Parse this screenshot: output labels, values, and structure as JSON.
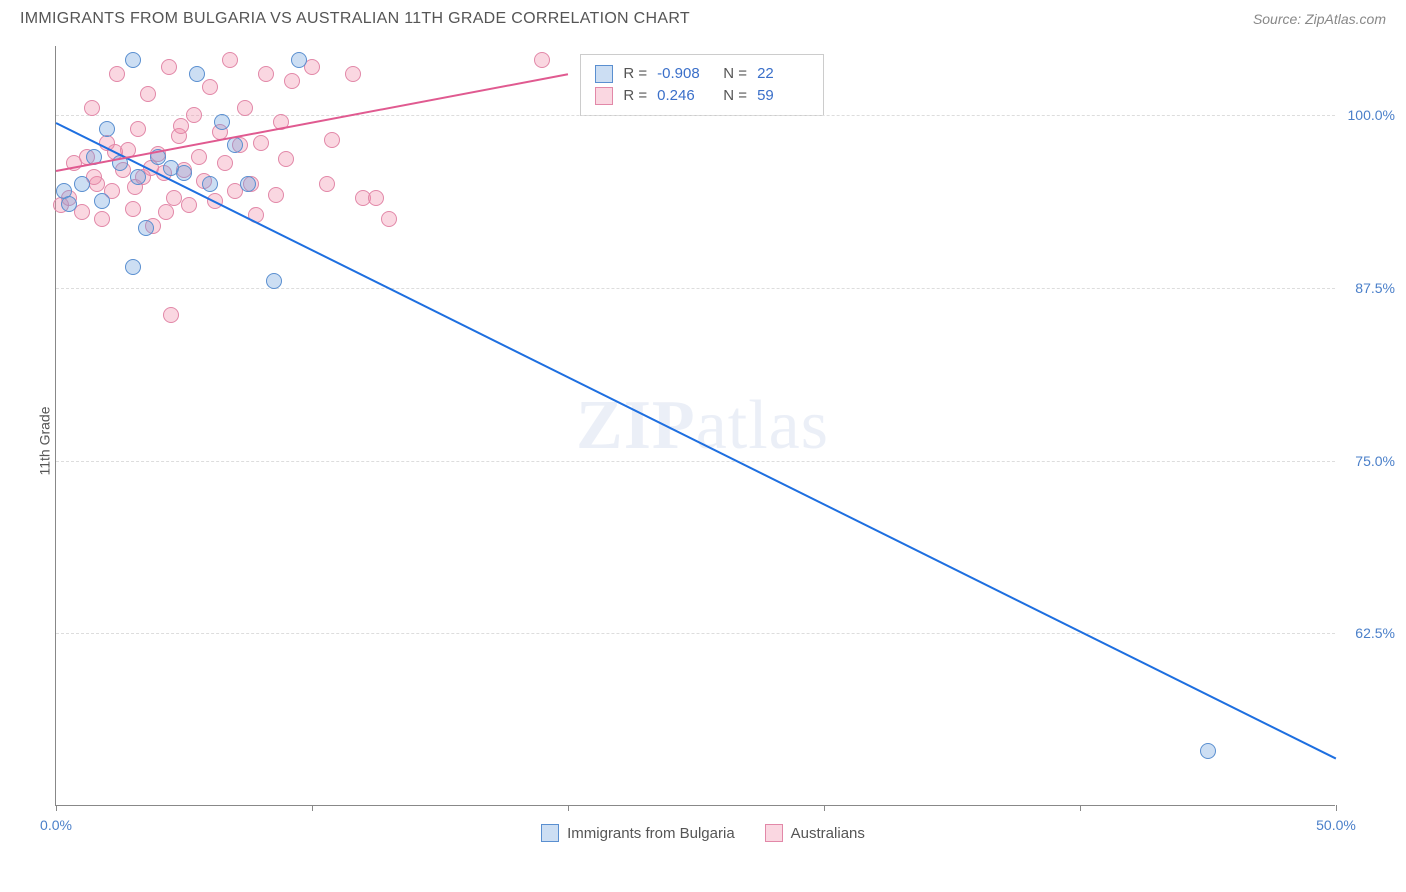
{
  "title": "IMMIGRANTS FROM BULGARIA VS AUSTRALIAN 11TH GRADE CORRELATION CHART",
  "source_label": "Source: ZipAtlas.com",
  "y_axis_title": "11th Grade",
  "watermark_text": "ZIPatlas",
  "chart": {
    "type": "scatter",
    "xlim": [
      0,
      50
    ],
    "ylim": [
      50,
      105
    ],
    "x_ticks": [
      0,
      10,
      20,
      30,
      40,
      50
    ],
    "x_tick_labels": {
      "0": "0.0%",
      "50": "50.0%"
    },
    "y_ticks": [
      62.5,
      75.0,
      87.5,
      100.0
    ],
    "y_tick_labels": [
      "62.5%",
      "75.0%",
      "87.5%",
      "100.0%"
    ],
    "grid_color": "#dddddd",
    "axis_color": "#888888",
    "background_color": "#ffffff",
    "axis_label_color": "#4a7fc9",
    "marker_radius": 8,
    "marker_stroke_width": 1
  },
  "series": {
    "bulgaria": {
      "label": "Immigrants from Bulgaria",
      "color_fill": "rgba(108,160,220,0.35)",
      "color_stroke": "#5a8fd0",
      "R": "-0.908",
      "N": "22",
      "trend": {
        "x1": 0,
        "y1": 99.5,
        "x2": 50,
        "y2": 53.5,
        "color": "#1e6fe0",
        "width": 2
      },
      "points": [
        [
          0.3,
          94.5
        ],
        [
          1.0,
          95.0
        ],
        [
          1.5,
          97.0
        ],
        [
          2.0,
          99.0
        ],
        [
          2.5,
          96.5
        ],
        [
          3.0,
          104.0
        ],
        [
          3.2,
          95.5
        ],
        [
          3.5,
          91.8
        ],
        [
          4.0,
          97.0
        ],
        [
          4.5,
          96.2
        ],
        [
          5.0,
          95.8
        ],
        [
          5.5,
          103.0
        ],
        [
          6.0,
          95.0
        ],
        [
          6.5,
          99.5
        ],
        [
          7.0,
          97.8
        ],
        [
          7.5,
          95.0
        ],
        [
          3.0,
          89.0
        ],
        [
          8.5,
          88.0
        ],
        [
          9.5,
          104.0
        ],
        [
          45.0,
          54.0
        ],
        [
          0.5,
          93.6
        ],
        [
          1.8,
          93.8
        ]
      ]
    },
    "australians": {
      "label": "Australians",
      "color_fill": "rgba(240,140,170,0.35)",
      "color_stroke": "#e288a8",
      "R": "0.246",
      "N": "59",
      "trend": {
        "x1": 0,
        "y1": 96.0,
        "x2": 20,
        "y2": 103.0,
        "color": "#e05a90",
        "width": 2
      },
      "points": [
        [
          0.2,
          93.5
        ],
        [
          0.5,
          94.0
        ],
        [
          0.7,
          96.5
        ],
        [
          1.0,
          93.0
        ],
        [
          1.2,
          97.0
        ],
        [
          1.4,
          100.5
        ],
        [
          1.6,
          95.0
        ],
        [
          1.8,
          92.5
        ],
        [
          2.0,
          98.0
        ],
        [
          2.2,
          94.5
        ],
        [
          2.4,
          103.0
        ],
        [
          2.6,
          96.0
        ],
        [
          2.8,
          97.5
        ],
        [
          3.0,
          93.2
        ],
        [
          3.2,
          99.0
        ],
        [
          3.4,
          95.5
        ],
        [
          3.6,
          101.5
        ],
        [
          3.8,
          92.0
        ],
        [
          4.0,
          97.2
        ],
        [
          4.2,
          95.8
        ],
        [
          4.4,
          103.5
        ],
        [
          4.6,
          94.0
        ],
        [
          4.8,
          98.5
        ],
        [
          5.0,
          96.0
        ],
        [
          5.2,
          93.5
        ],
        [
          5.4,
          100.0
        ],
        [
          5.6,
          97.0
        ],
        [
          5.8,
          95.2
        ],
        [
          6.0,
          102.0
        ],
        [
          6.2,
          93.8
        ],
        [
          6.4,
          98.8
        ],
        [
          6.6,
          96.5
        ],
        [
          6.8,
          104.0
        ],
        [
          7.0,
          94.5
        ],
        [
          7.2,
          97.8
        ],
        [
          7.4,
          100.5
        ],
        [
          7.6,
          95.0
        ],
        [
          7.8,
          92.8
        ],
        [
          8.0,
          98.0
        ],
        [
          8.2,
          103.0
        ],
        [
          4.5,
          85.5
        ],
        [
          8.6,
          94.2
        ],
        [
          8.8,
          99.5
        ],
        [
          9.0,
          96.8
        ],
        [
          9.2,
          102.5
        ],
        [
          1.5,
          95.5
        ],
        [
          2.3,
          97.3
        ],
        [
          10.0,
          103.5
        ],
        [
          3.1,
          94.8
        ],
        [
          10.6,
          95.0
        ],
        [
          10.8,
          98.2
        ],
        [
          4.3,
          93.0
        ],
        [
          11.6,
          103.0
        ],
        [
          12.0,
          94.0
        ],
        [
          12.5,
          94.0
        ],
        [
          13.0,
          92.5
        ],
        [
          19.0,
          104.0
        ],
        [
          3.7,
          96.2
        ],
        [
          4.9,
          99.2
        ]
      ]
    }
  },
  "stats_box": {
    "left_pct": 41,
    "top_pct": 1
  },
  "legend_labels": {
    "r_prefix": "R =",
    "n_prefix": "N ="
  }
}
